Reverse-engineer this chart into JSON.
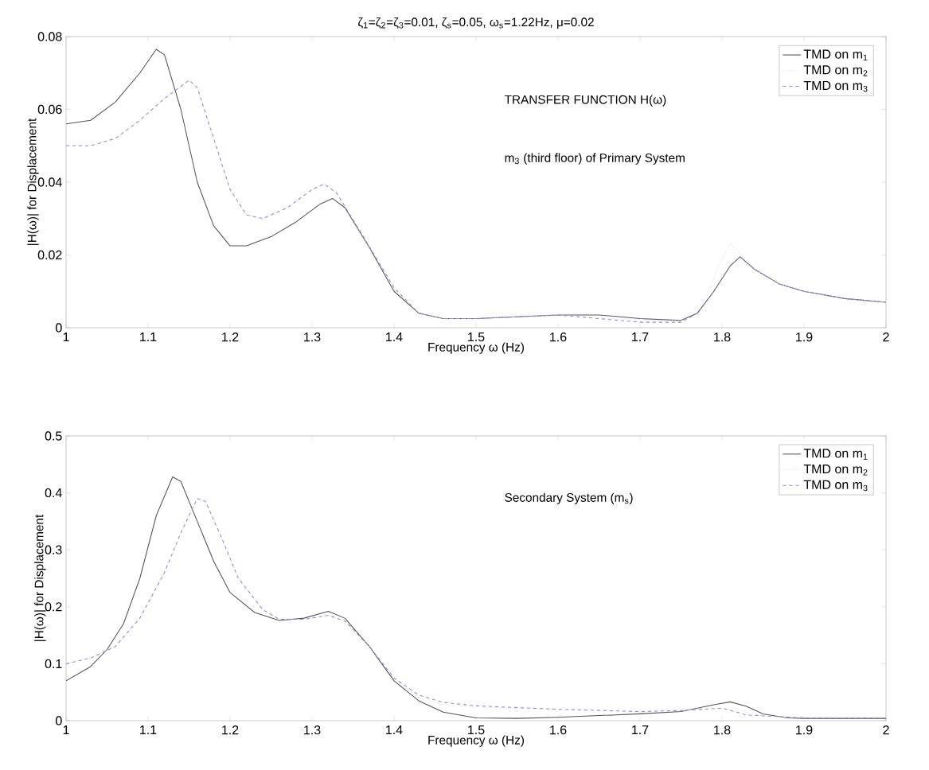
{
  "chart_data": [
    {
      "type": "line",
      "title": "ζ$_{1}$=ζ$_{2}$=ζ$_{3}$=0.01, ζ$_{s}$=0.05, ω$_{s}$=1.22Hz, μ=0.02",
      "xlabel": "Frequency ω (Hz)",
      "ylabel": "|H(ω)| for Displacement",
      "annotations": [
        "TRANSFER FUNCTION H(ω)",
        "m$_{3}$ (third floor) of Primary System"
      ],
      "xlim": [
        1,
        2
      ],
      "ylim": [
        0,
        0.08
      ],
      "xticks": [
        1,
        1.1,
        1.2,
        1.3,
        1.4,
        1.5,
        1.6,
        1.7,
        1.8,
        1.9,
        2
      ],
      "yticks": [
        0,
        0.02,
        0.04,
        0.06,
        0.08
      ],
      "grid": false,
      "legend": "top right",
      "series": [
        {
          "name": "TMD on m$_{1}$",
          "color": "#555555",
          "line_style": "solid",
          "x": [
            1.0,
            1.03,
            1.06,
            1.09,
            1.11,
            1.12,
            1.14,
            1.16,
            1.18,
            1.2,
            1.22,
            1.25,
            1.28,
            1.31,
            1.325,
            1.34,
            1.37,
            1.4,
            1.43,
            1.46,
            1.5,
            1.55,
            1.6,
            1.65,
            1.7,
            1.75,
            1.77,
            1.79,
            1.81,
            1.822,
            1.84,
            1.87,
            1.9,
            1.95,
            2.0
          ],
          "values": [
            0.056,
            0.057,
            0.062,
            0.07,
            0.0765,
            0.075,
            0.06,
            0.04,
            0.028,
            0.0225,
            0.0225,
            0.025,
            0.029,
            0.034,
            0.0355,
            0.033,
            0.022,
            0.01,
            0.004,
            0.0025,
            0.0025,
            0.003,
            0.0035,
            0.0035,
            0.0025,
            0.002,
            0.004,
            0.01,
            0.017,
            0.0195,
            0.016,
            0.012,
            0.01,
            0.008,
            0.007
          ]
        },
        {
          "name": "TMD on m$_{2}$",
          "color": "#d9d9d9",
          "line_style": "dotted",
          "x": [
            1.0,
            1.03,
            1.06,
            1.09,
            1.12,
            1.15,
            1.16,
            1.18,
            1.2,
            1.22,
            1.24,
            1.27,
            1.3,
            1.315,
            1.33,
            1.36,
            1.4,
            1.43,
            1.46,
            1.5,
            1.6,
            1.7,
            1.75,
            1.78,
            1.8,
            1.81,
            1.82,
            1.84,
            1.87,
            1.9,
            1.95,
            2.0
          ],
          "values": [
            0.05,
            0.05,
            0.052,
            0.057,
            0.063,
            0.068,
            0.066,
            0.052,
            0.038,
            0.031,
            0.03,
            0.033,
            0.038,
            0.0395,
            0.037,
            0.026,
            0.011,
            0.004,
            0.0025,
            0.0025,
            0.0035,
            0.002,
            0.002,
            0.008,
            0.019,
            0.023,
            0.021,
            0.016,
            0.012,
            0.01,
            0.008,
            0.007
          ]
        },
        {
          "name": "TMD on m$_{3}$",
          "color": "#8c8cd9",
          "line_style": "dashed",
          "x": [
            1.0,
            1.03,
            1.06,
            1.09,
            1.12,
            1.15,
            1.16,
            1.18,
            1.2,
            1.22,
            1.24,
            1.27,
            1.3,
            1.315,
            1.33,
            1.36,
            1.4,
            1.43,
            1.46,
            1.5,
            1.6,
            1.7,
            1.75,
            1.77,
            1.79,
            1.81,
            1.822,
            1.84,
            1.87,
            1.9,
            1.95,
            2.0
          ],
          "values": [
            0.05,
            0.05,
            0.052,
            0.057,
            0.063,
            0.068,
            0.066,
            0.052,
            0.038,
            0.031,
            0.03,
            0.033,
            0.038,
            0.0395,
            0.037,
            0.026,
            0.011,
            0.004,
            0.0025,
            0.0025,
            0.0035,
            0.0015,
            0.0015,
            0.004,
            0.01,
            0.017,
            0.0195,
            0.016,
            0.012,
            0.01,
            0.008,
            0.007
          ]
        }
      ]
    },
    {
      "type": "line",
      "xlabel": "Frequency ω (Hz)",
      "ylabel": "|H(ω)| for Displacement",
      "annotations": [
        "Secondary System (m$_{s}$)"
      ],
      "xlim": [
        1,
        2
      ],
      "ylim": [
        0,
        0.5
      ],
      "xticks": [
        1,
        1.1,
        1.2,
        1.3,
        1.4,
        1.5,
        1.6,
        1.7,
        1.8,
        1.9,
        2
      ],
      "yticks": [
        0,
        0.1,
        0.2,
        0.3,
        0.4,
        0.5
      ],
      "grid": false,
      "legend": "top right",
      "series": [
        {
          "name": "TMD on m$_{1}$",
          "color": "#555555",
          "line_style": "solid",
          "x": [
            1.0,
            1.03,
            1.05,
            1.07,
            1.09,
            1.11,
            1.13,
            1.14,
            1.16,
            1.18,
            1.2,
            1.23,
            1.26,
            1.29,
            1.32,
            1.34,
            1.37,
            1.4,
            1.43,
            1.46,
            1.5,
            1.55,
            1.6,
            1.65,
            1.7,
            1.75,
            1.79,
            1.81,
            1.83,
            1.85,
            1.88,
            1.9,
            2.0
          ],
          "values": [
            0.07,
            0.095,
            0.125,
            0.17,
            0.25,
            0.36,
            0.428,
            0.42,
            0.35,
            0.28,
            0.225,
            0.19,
            0.176,
            0.18,
            0.192,
            0.18,
            0.13,
            0.07,
            0.035,
            0.015,
            0.005,
            0.004,
            0.006,
            0.009,
            0.012,
            0.016,
            0.028,
            0.033,
            0.025,
            0.012,
            0.005,
            0.004,
            0.004
          ]
        },
        {
          "name": "TMD on m$_{2}$",
          "color": "#d9d9d9",
          "line_style": "dotted",
          "x": [
            1.0,
            1.03,
            1.06,
            1.09,
            1.12,
            1.14,
            1.16,
            1.17,
            1.19,
            1.21,
            1.24,
            1.26,
            1.29,
            1.32,
            1.34,
            1.37,
            1.4,
            1.43,
            1.46,
            1.5,
            1.6,
            1.7,
            1.75,
            1.8,
            1.82,
            1.85,
            1.9,
            2.0
          ],
          "values": [
            0.1,
            0.11,
            0.13,
            0.18,
            0.26,
            0.33,
            0.39,
            0.385,
            0.32,
            0.25,
            0.195,
            0.178,
            0.178,
            0.185,
            0.175,
            0.13,
            0.075,
            0.04,
            0.028,
            0.024,
            0.02,
            0.016,
            0.018,
            0.022,
            0.018,
            0.008,
            0.005,
            0.005
          ]
        },
        {
          "name": "TMD on m$_{3}$",
          "color": "#8c8cd9",
          "line_style": "dashed",
          "x": [
            1.0,
            1.03,
            1.06,
            1.09,
            1.12,
            1.14,
            1.16,
            1.17,
            1.19,
            1.21,
            1.24,
            1.26,
            1.29,
            1.32,
            1.34,
            1.37,
            1.4,
            1.43,
            1.46,
            1.5,
            1.6,
            1.7,
            1.75,
            1.8,
            1.83,
            1.9,
            2.0
          ],
          "values": [
            0.1,
            0.11,
            0.13,
            0.18,
            0.26,
            0.33,
            0.39,
            0.385,
            0.32,
            0.25,
            0.195,
            0.178,
            0.178,
            0.185,
            0.175,
            0.13,
            0.075,
            0.045,
            0.032,
            0.026,
            0.02,
            0.016,
            0.018,
            0.022,
            0.01,
            0.005,
            0.005
          ]
        }
      ]
    }
  ]
}
